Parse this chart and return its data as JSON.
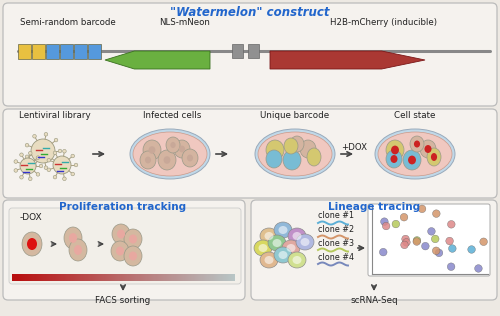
{
  "title": "\"Watermelon\" construct",
  "title_color": "#1a6bb5",
  "bg_color": "#ede9e3",
  "panel_bg": "#f5f2ee",
  "border_color": "#bbbbbb",
  "section1_labels": [
    "Semi-random barcode",
    "NLS-mNeon",
    "H2B-mCherry (inducible)"
  ],
  "section2_labels": [
    "Lentiviral library",
    "Infected cells",
    "Unique barcode",
    "Cell state"
  ],
  "section3_left_title": "Proliferation tracking",
  "section3_right_title": "Lineage tracing",
  "title_color_blue": "#2266cc",
  "facs_label": "FACS sorting",
  "scrna_label": "scRNA-Seq",
  "dox_label": "+DOX",
  "minus_dox_label": "-DOX",
  "clone_labels": [
    "clone #1",
    "clone #2",
    "clone #3",
    "clone #4"
  ],
  "clone_wavy_colors": [
    "#5bafd6",
    "#d4956a",
    "#b5c95a",
    "#7788bb"
  ],
  "barcode_colors": [
    "#e8c040",
    "#e8c040",
    "#5599dd",
    "#5599dd",
    "#5599dd",
    "#5599dd"
  ],
  "green_arrow_color": "#6ab040",
  "red_arrow_color": "#aa3833",
  "gray_color": "#888888",
  "cell_beige": "#d8c0a8",
  "cell_pink_bg": "#f0c8c0",
  "dish_rim": "#c0d8e8",
  "virus_body": "#e8dcc0"
}
